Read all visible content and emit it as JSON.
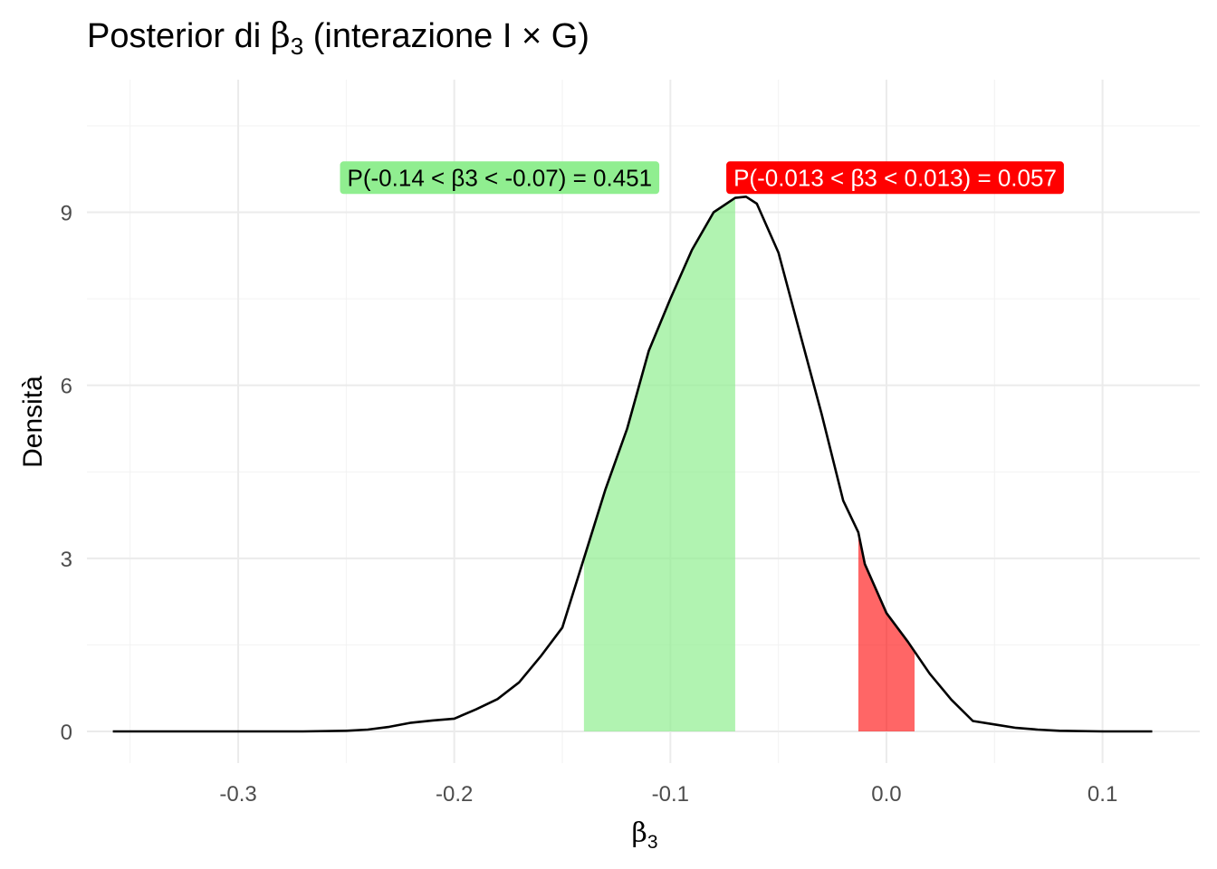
{
  "chart_data": {
    "type": "area",
    "title_prefix": "Posterior di ",
    "title_symbol": "β",
    "title_sub": "3",
    "title_suffix": " (interazione I × G)",
    "xlabel_symbol": "β",
    "xlabel_sub": "3",
    "ylabel": "Densità",
    "xlim": [
      -0.37,
      0.145
    ],
    "ylim": [
      -0.55,
      11.3
    ],
    "x_ticks": [
      -0.3,
      -0.2,
      -0.1,
      0.0,
      0.1
    ],
    "x_tick_labels": [
      "-0.3",
      "-0.2",
      "-0.1",
      "0.0",
      "0.1"
    ],
    "y_ticks": [
      0,
      3,
      6,
      9
    ],
    "y_tick_labels": [
      "0",
      "3",
      "6",
      "9"
    ],
    "grid": true,
    "density_curve": {
      "x": [
        -0.358,
        -0.33,
        -0.3,
        -0.27,
        -0.25,
        -0.24,
        -0.23,
        -0.22,
        -0.21,
        -0.2,
        -0.19,
        -0.18,
        -0.17,
        -0.16,
        -0.15,
        -0.14,
        -0.13,
        -0.12,
        -0.11,
        -0.1,
        -0.09,
        -0.08,
        -0.07,
        -0.065,
        -0.06,
        -0.05,
        -0.04,
        -0.03,
        -0.02,
        -0.013,
        -0.01,
        0.0,
        0.01,
        0.02,
        0.03,
        0.04,
        0.05,
        0.06,
        0.07,
        0.08,
        0.1,
        0.123
      ],
      "y": [
        0.0,
        0.0,
        0.0,
        0.0,
        0.01,
        0.03,
        0.08,
        0.15,
        0.19,
        0.22,
        0.38,
        0.56,
        0.85,
        1.3,
        1.8,
        3.0,
        4.2,
        5.25,
        6.6,
        7.5,
        8.35,
        9.0,
        9.25,
        9.27,
        9.15,
        8.3,
        6.9,
        5.5,
        4.0,
        3.45,
        2.9,
        2.05,
        1.55,
        1.0,
        0.55,
        0.18,
        0.12,
        0.06,
        0.03,
        0.01,
        0.0,
        0.0
      ],
      "color": "#000000"
    },
    "shaded_regions": [
      {
        "from": -0.14,
        "to": -0.07,
        "color": "#90EE90",
        "probability": 0.451,
        "label": "P(-0.14 < β3 < -0.07) = 0.451",
        "label_x": -0.179,
        "label_y": 9.6,
        "label_bg": "#90EE90",
        "label_text_color": "#000000"
      },
      {
        "from": -0.013,
        "to": 0.013,
        "color": "#FF0000",
        "probability": 0.057,
        "label": "P(-0.013 < β3 < 0.013) = 0.057",
        "label_x": 0.004,
        "label_y": 9.6,
        "label_bg": "#FF0000",
        "label_text_color": "#ffffff"
      }
    ]
  }
}
